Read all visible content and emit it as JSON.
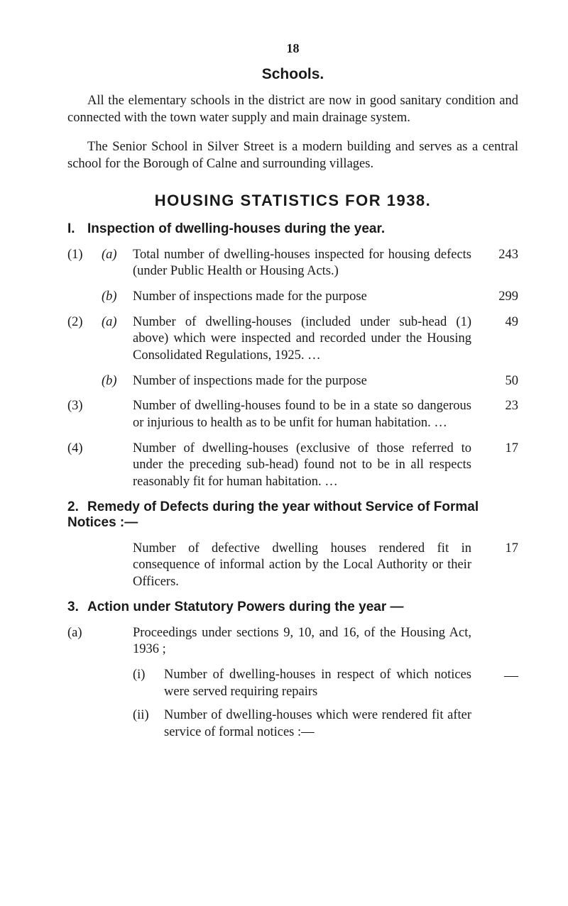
{
  "page_number": "18",
  "schools": {
    "heading": "Schools.",
    "para1": "All the elementary schools in the district are now in good sanitary condition and connected with the town water supply and main drainage system.",
    "para2": "The Senior School in Silver Street is a modern building and serves as a central school for the Borough of Calne and surrounding villages."
  },
  "stats_heading": "HOUSING   STATISTICS   FOR   1938.",
  "section1": {
    "num": "I.",
    "title": "Inspection of dwelling-houses during the year.",
    "items": [
      {
        "a": "(1)",
        "b": "(a)",
        "text": "Total number of dwelling-houses inspected for housing defects (under Public Health or Housing Acts.)",
        "val": "243"
      },
      {
        "a": "",
        "b": "(b)",
        "text": "Number of inspections made for the purpose",
        "val": "299"
      },
      {
        "a": "(2)",
        "b": "(a)",
        "text": "Number of dwelling-houses (included under sub-head (1) above) which were inspected and recorded under the Housing Consolidated Regulations, 1925.               …",
        "val": "49"
      },
      {
        "a": "",
        "b": "(b)",
        "text": "Number of inspections made for the purpose",
        "val": "50"
      },
      {
        "a": "(3)",
        "b": "",
        "text": "Number of dwelling-houses found to be in a state so dangerous or injurious to health as to be unfit for human habitation.      …",
        "val": "23"
      },
      {
        "a": "(4)",
        "b": "",
        "text": "Number of dwelling-houses (exclusive of those referred to under the preceding sub-head) found not to be in all respects reasonably fit for human habitation.         …",
        "val": "17"
      }
    ]
  },
  "section2": {
    "num": "2.",
    "title": "Remedy of Defects during the year without Service of Formal Notices :—",
    "row": {
      "text": "Number of defective dwelling houses rendered fit in consequence of informal action by the Local Authority or their Officers.",
      "val": "17"
    }
  },
  "section3": {
    "num": "3.",
    "title": "Action under Statutory Powers during the year —",
    "a_label": "(a)",
    "a_text": "Proceedings under sections 9, 10, and 16, of the Housing Act, 1936 ;",
    "subs": [
      {
        "rom": "(i)",
        "text": "Number of dwelling-houses in respect of which notices were served requiring repairs",
        "val": "—"
      },
      {
        "rom": "(ii)",
        "text": "Number of dwelling-houses which were rendered fit after service of formal notices :—",
        "val": ""
      }
    ]
  }
}
